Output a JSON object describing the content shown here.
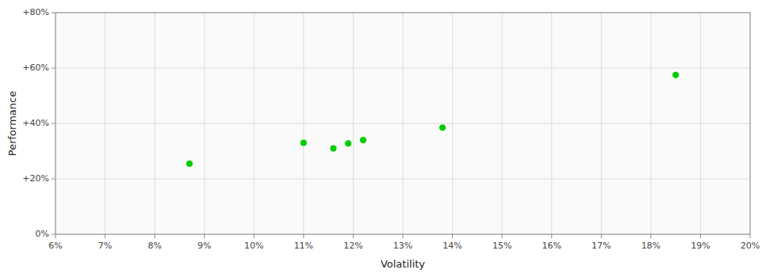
{
  "chart_data": {
    "type": "scatter",
    "xlabel": "Volatility",
    "ylabel": "Performance",
    "x": [
      0.087,
      0.11,
      0.116,
      0.119,
      0.122,
      0.138,
      0.185
    ],
    "values": [
      0.255,
      0.33,
      0.31,
      0.328,
      0.34,
      0.385,
      0.575
    ],
    "color": "#00cc00",
    "marker": "circle",
    "xlim": [
      0.06,
      0.2
    ],
    "ylim": [
      0.0,
      0.8
    ],
    "xticks": [
      {
        "value": 0.06,
        "label": "6%"
      },
      {
        "value": 0.07,
        "label": "7%"
      },
      {
        "value": 0.08,
        "label": "8%"
      },
      {
        "value": 0.09,
        "label": "9%"
      },
      {
        "value": 0.1,
        "label": "10%"
      },
      {
        "value": 0.11,
        "label": "11%"
      },
      {
        "value": 0.12,
        "label": "12%"
      },
      {
        "value": 0.13,
        "label": "13%"
      },
      {
        "value": 0.14,
        "label": "14%"
      },
      {
        "value": 0.15,
        "label": "15%"
      },
      {
        "value": 0.16,
        "label": "16%"
      },
      {
        "value": 0.17,
        "label": "17%"
      },
      {
        "value": 0.18,
        "label": "18%"
      },
      {
        "value": 0.19,
        "label": "19%"
      },
      {
        "value": 0.2,
        "label": "20%"
      }
    ],
    "yticks": [
      {
        "value": 0.0,
        "label": "0%"
      },
      {
        "value": 0.2,
        "label": "+20%"
      },
      {
        "value": 0.4,
        "label": "+40%"
      },
      {
        "value": 0.6,
        "label": "+60%"
      },
      {
        "value": 0.8,
        "label": "+80%"
      }
    ],
    "grid": true
  }
}
